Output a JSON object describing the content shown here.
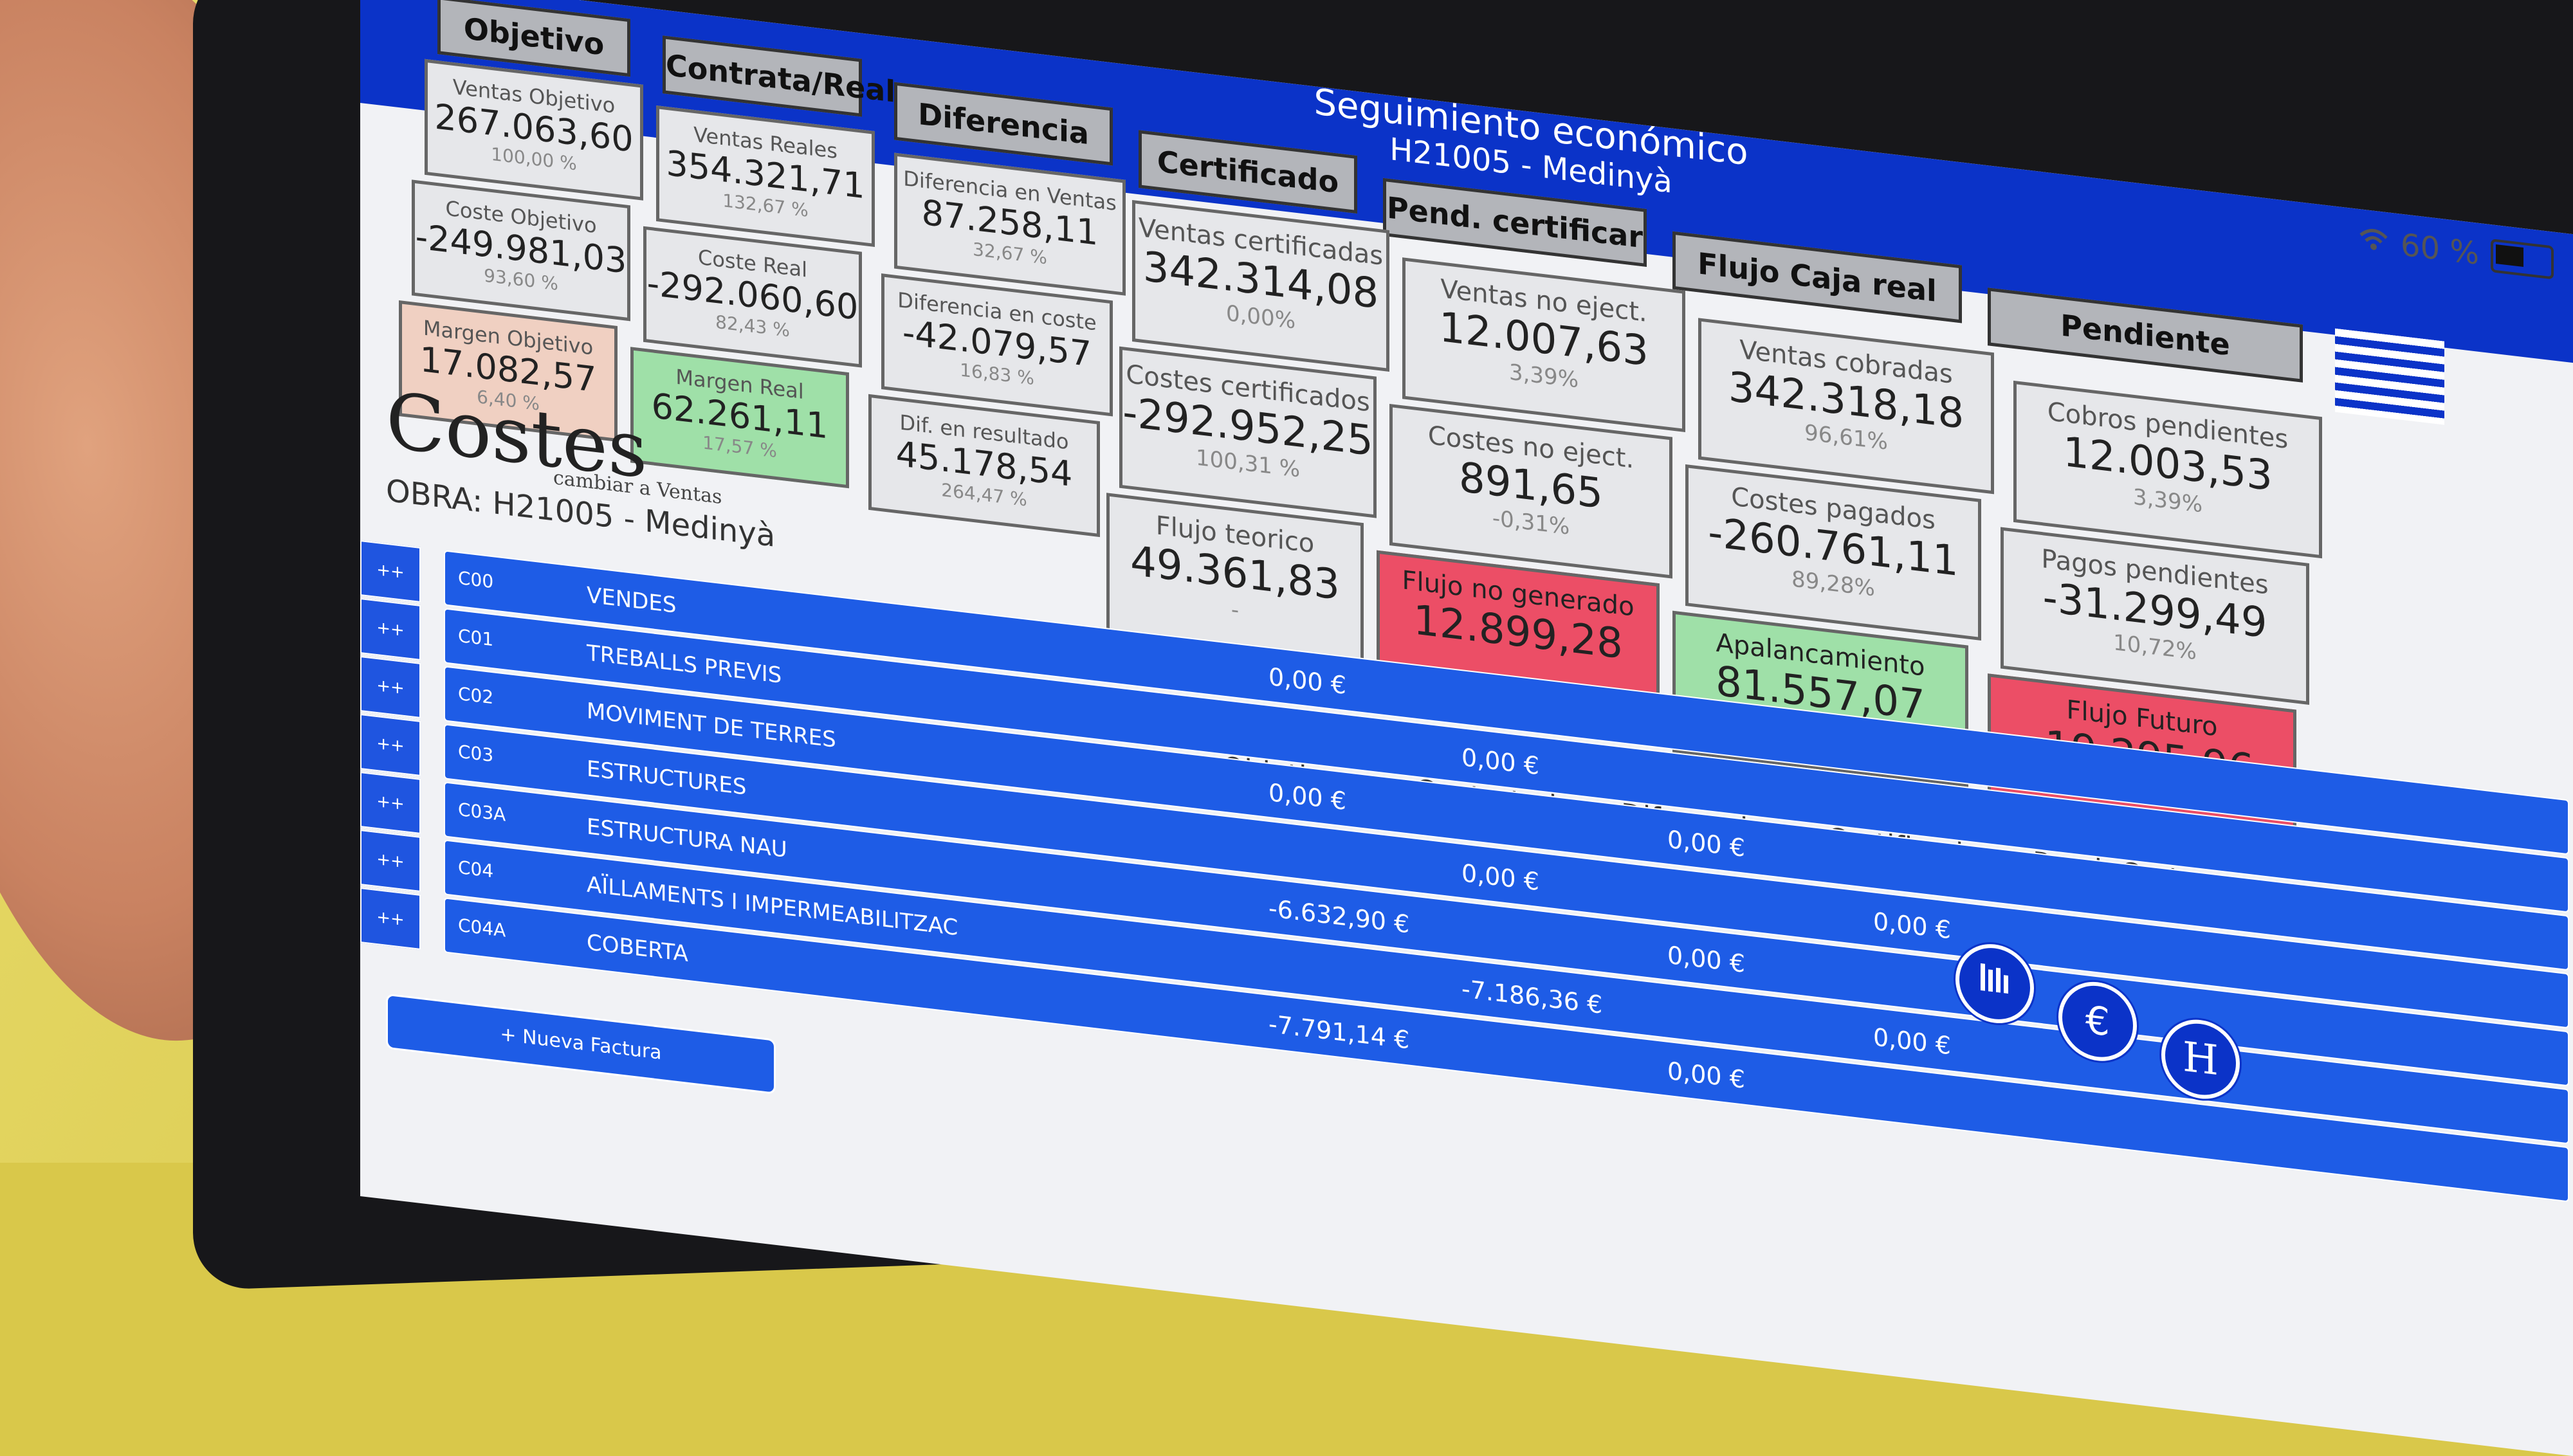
{
  "app": {
    "title": "Seguimiento económico",
    "subtitle": "H21005 - Medinyà",
    "battery": "60 %"
  },
  "summary": {
    "columns": [
      "Objetivo",
      "Contrata/Real",
      "Diferencia",
      "Certificado",
      "Pend. certificar",
      "Flujo Caja real",
      "Pendiente"
    ],
    "objetivo": [
      {
        "label": "Ventas Objetivo",
        "value": "267.063,60",
        "pct": "100,00 %"
      },
      {
        "label": "Coste Objetivo",
        "value": "-249.981,03",
        "pct": "93,60 %"
      },
      {
        "label": "Margen Objetivo",
        "value": "17.082,57",
        "pct": "6,40 %"
      }
    ],
    "real": [
      {
        "label": "Ventas Reales",
        "value": "354.321,71",
        "pct": "132,67 %"
      },
      {
        "label": "Coste Real",
        "value": "-292.060,60",
        "pct": "82,43 %"
      },
      {
        "label": "Margen Real",
        "value": "62.261,11",
        "pct": "17,57 %"
      }
    ],
    "diferencia": [
      {
        "label": "Diferencia en Ventas",
        "value": "87.258,11",
        "pct": "32,67 %"
      },
      {
        "label": "Diferencia en coste",
        "value": "-42.079,57",
        "pct": "16,83 %"
      },
      {
        "label": "Dif. en resultado",
        "value": "45.178,54",
        "pct": "264,47 %"
      }
    ],
    "certificado": [
      {
        "label": "Ventas certificadas",
        "value": "342.314,08",
        "pct": "0,00%"
      },
      {
        "label": "Costes certificados",
        "value": "-292.952,25",
        "pct": "100,31 %"
      },
      {
        "label": "Flujo teorico",
        "value": "49.361,83",
        "pct": "-"
      }
    ],
    "pend_certificar": [
      {
        "label": "Ventas no eject.",
        "value": "12.007,63",
        "pct": "3,39%"
      },
      {
        "label": "Costes no eject.",
        "value": "891,65",
        "pct": "-0,31%"
      },
      {
        "label": "Flujo no generado",
        "value": "12.899,28",
        "pct": ""
      }
    ],
    "flujo_caja": [
      {
        "label": "Ventas cobradas",
        "value": "342.318,18",
        "pct": "96,61%"
      },
      {
        "label": "Costes pagados",
        "value": "-260.761,11",
        "pct": "89,28%"
      },
      {
        "label": "Apalancamiento",
        "value": "81.557,07",
        "pct": "-"
      }
    ],
    "pendiente": [
      {
        "label": "Cobros pendientes",
        "value": "12.003,53",
        "pct": "3,39%"
      },
      {
        "label": "Pagos pendientes",
        "value": "-31.299,49",
        "pct": "10,72%"
      },
      {
        "label": "Flujo Futuro",
        "value": "-19.295,96",
        "pct": ""
      }
    ]
  },
  "costes": {
    "title": "Costes",
    "switch_link": "cambiar a Ventas",
    "obra": "OBRA: H21005 - Medinyà",
    "table_headers": [
      "Objetivo",
      "Contratado",
      "Diferencia",
      "Certificado",
      "Pend. Cert"
    ],
    "expand_label": "++",
    "rows": [
      {
        "code": "C00",
        "name": "VENDES",
        "v1": "0,00 €",
        "v2": "",
        "v3": "",
        "v4": ""
      },
      {
        "code": "C01",
        "name": "TREBALLS PREVIS",
        "v1": "",
        "v2": "0,00 €",
        "v3": "",
        "v4": ""
      },
      {
        "code": "C02",
        "name": "MOVIMENT DE TERRES",
        "v1": "0,00 €",
        "v2": "",
        "v3": "0,00 €",
        "v4": ""
      },
      {
        "code": "C03",
        "name": "ESTRUCTURES",
        "v1": "",
        "v2": "0,00 €",
        "v3": "",
        "v4": "0,00 €"
      },
      {
        "code": "C03A",
        "name": "ESTRUCTURA NAU",
        "v1": "-6.632,90 €",
        "v2": "",
        "v3": "0,00 €",
        "v4": ""
      },
      {
        "code": "C04",
        "name": "AÏLLAMENTS I IMPERMEABILITZAC",
        "v1": "",
        "v2": "-7.186,36 €",
        "v3": "",
        "v4": "0,00 €"
      },
      {
        "code": "C04A",
        "name": "COBERTA",
        "v1": "-7.791,14 €",
        "v2": "",
        "v3": "0,00 €",
        "v4": ""
      }
    ],
    "new_invoice": "+ Nueva Factura"
  },
  "fab": {
    "chart_icon": "bar-chart-icon",
    "euro_icon": "euro-icon",
    "h_icon": "h-icon",
    "h_label": "H"
  },
  "colors": {
    "header_blue": "#0b33c8",
    "row_blue": "#1e5ce6",
    "positive_green": "#9fe0a8",
    "negative_red": "#ec4e66",
    "objective_peach": "#f0d0c2"
  }
}
